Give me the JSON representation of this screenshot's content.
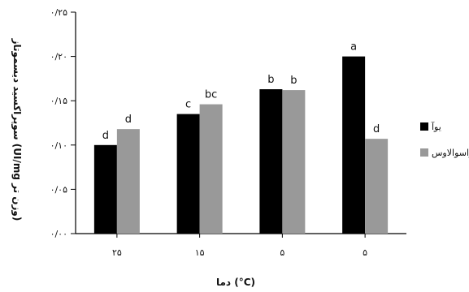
{
  "chart_data": {
    "type": "bar",
    "xlabel": "دما (°C)",
    "ylabel": "سوپراکسید دیسموتاز (UI/mg وزن تر)",
    "categories": [
      "۲۵",
      "۱۵",
      "۵",
      "۵"
    ],
    "ylim": [
      0,
      0.25
    ],
    "y_ticks": [
      {
        "value": 0,
        "label": "۰/۰۰"
      },
      {
        "value": 0.05,
        "label": "۰/۰۵"
      },
      {
        "value": 0.1,
        "label": "۰/۱۰"
      },
      {
        "value": 0.15,
        "label": "۰/۱۵"
      },
      {
        "value": 0.2,
        "label": "۰/۲۰"
      },
      {
        "value": 0.25,
        "label": "۰/۲۵"
      }
    ],
    "series": [
      {
        "name": "یوآ",
        "color": "#000000",
        "values": [
          0.1,
          0.135,
          0.163,
          0.2
        ],
        "labels": [
          "d",
          "c",
          "b",
          "a"
        ]
      },
      {
        "name": "راسوالاوس",
        "color": "#999999",
        "values": [
          0.118,
          0.146,
          0.162,
          0.107
        ],
        "labels": [
          "d",
          "bc",
          "b",
          "d"
        ]
      }
    ],
    "legend_position": "right",
    "grid": false
  }
}
